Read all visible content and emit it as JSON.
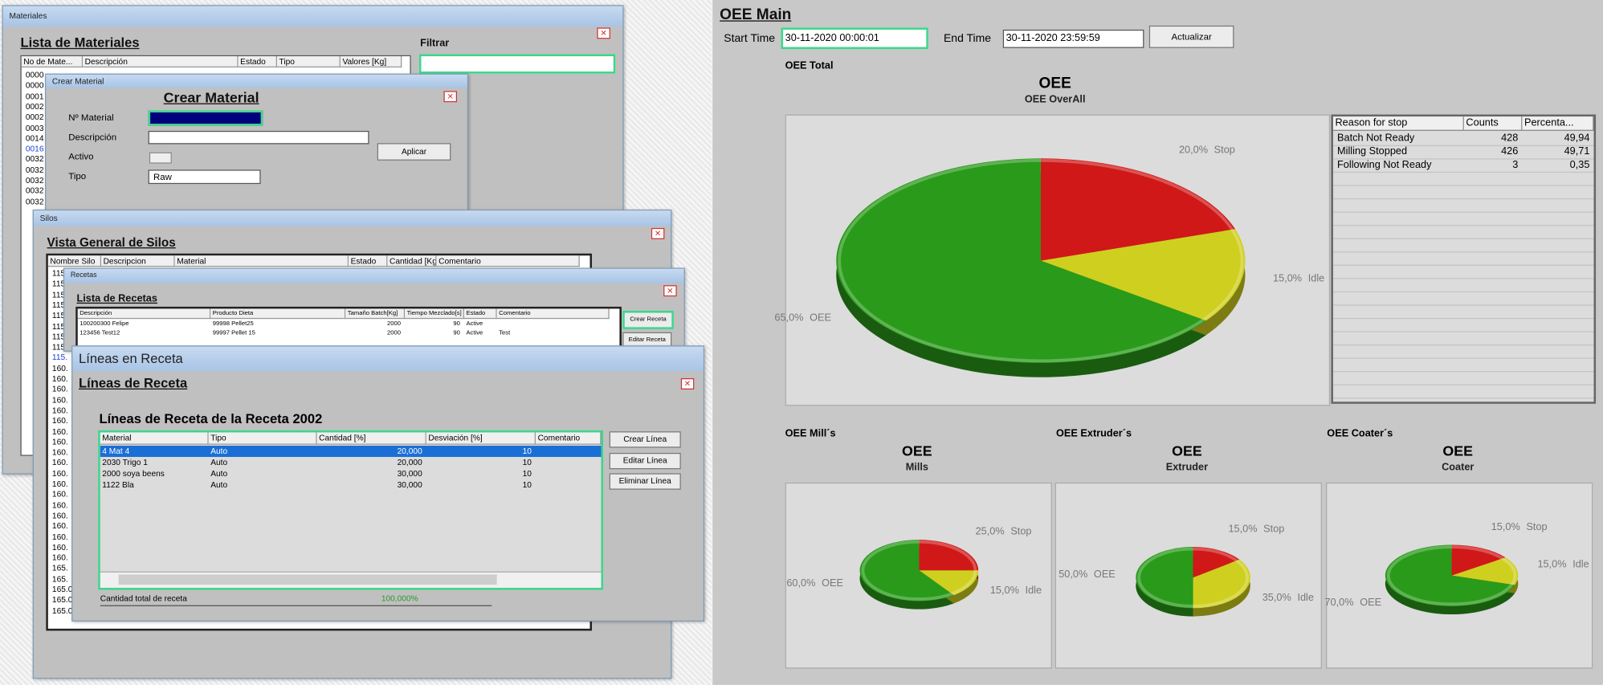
{
  "materiales": {
    "window_title": "Materiales",
    "heading": "Lista de Materiales",
    "columns": [
      "No de Mate...",
      "Descripción",
      "Estado",
      "Tipo",
      "Valores [Kg]"
    ],
    "codes": [
      "0000",
      "0000",
      "0001",
      "0002",
      "0002",
      "0003",
      "0014",
      "0016",
      "0032",
      "0032",
      "0032",
      "0032",
      "0032"
    ],
    "filter_label": "Filtrar"
  },
  "crear_material": {
    "window_title": "Crear Material",
    "heading": "Crear Material",
    "fields": [
      "Nº Material",
      "Descripción",
      "Activo",
      "Tipo"
    ],
    "tipo_value": "Raw",
    "button": "Aplicar"
  },
  "silos": {
    "window_title": "Silos",
    "heading": "Vista General de Silos",
    "columns": [
      "Nombre Silo",
      "Descripcion",
      "Material",
      "Estado",
      "Cantidad [Kg]",
      "Comentario"
    ],
    "codes": [
      "115.",
      "115.",
      "115.",
      "115.",
      "115.",
      "115.",
      "115.",
      "115.",
      "115.",
      "160.",
      "160.",
      "160.",
      "160.",
      "160.",
      "160.",
      "160.",
      "160.",
      "160.",
      "160.",
      "160.",
      "160.",
      "160.",
      "160.",
      "160.",
      "160.",
      "160.",
      "160.",
      "160.",
      "165.",
      "165.",
      "165.0",
      "165.0",
      "165.0"
    ]
  },
  "recetas": {
    "window_title": "Recetas",
    "heading": "Lista de Recetas",
    "columns": [
      "Descripción",
      "Producto Dieta",
      "Tamaño Batch[Kg]",
      "Tiempo Mezclado[s]",
      "Estado",
      "Comentario"
    ],
    "rows": [
      [
        "100200300 Felipe",
        "99998 Pellet25",
        "2000",
        "90",
        "Active"
      ],
      [
        "123456 Test12",
        "99997 Pellet 15",
        "2000",
        "90",
        "Active",
        "Test"
      ]
    ],
    "buttons": [
      "Crear Receta",
      "Editar Receta"
    ]
  },
  "lineas": {
    "window_title": "Líneas en Receta",
    "heading": "Líneas de Receta",
    "subheading": "Líneas de Receta de la Receta  2002",
    "columns": [
      "Material",
      "Tipo",
      "Cantidad [%]",
      "Desviación [%]",
      "Comentario"
    ],
    "rows": [
      [
        "4 Mat 4",
        "Auto",
        "20,000",
        "10"
      ],
      [
        "2030 Trigo 1",
        "Auto",
        "20,000",
        "10"
      ],
      [
        "2000 soya beens",
        "Auto",
        "30,000",
        "10"
      ],
      [
        "1122 Bla",
        "Auto",
        "30,000",
        "10"
      ]
    ],
    "buttons": [
      "Crear Línea",
      "Editar Línea",
      "Eliminar Línea"
    ],
    "total_label": "Cantidad total de receta",
    "total_value": "100,000%"
  },
  "oee": {
    "title": "OEE Main",
    "start_label": "Start Time",
    "start_value": "30-11-2020 00:00:01",
    "end_label": "End Time",
    "end_value": "30-11-2020 23:59:59",
    "button": "Actualizar",
    "total_label": "OEE Total",
    "section_labels": [
      "OEE Mill´s",
      "OEE Extruder´s",
      "OEE Coater´s"
    ],
    "stops_table": {
      "columns": [
        "Reason for stop",
        "Counts",
        "Percenta..."
      ],
      "rows": [
        [
          "Batch Not Ready",
          "428",
          "49,94"
        ],
        [
          "Milling Stopped",
          "426",
          "49,71"
        ],
        [
          "Following Not Ready",
          "3",
          "0,35"
        ]
      ]
    }
  },
  "chart_data": [
    {
      "type": "pie",
      "title": "OEE",
      "subtitle": "OEE OverAll",
      "categories": [
        "OEE",
        "Stop",
        "Idle"
      ],
      "values": [
        65,
        20,
        15
      ],
      "value_labels": [
        "65,0%",
        "20,0%",
        "15,0%"
      ],
      "colors": [
        "#2a9a1a",
        "#d01818",
        "#cfcf20"
      ]
    },
    {
      "type": "pie",
      "title": "OEE",
      "subtitle": "Mills",
      "categories": [
        "OEE",
        "Stop",
        "Idle"
      ],
      "values": [
        60,
        25,
        15
      ],
      "value_labels": [
        "60,0%",
        "25,0%",
        "15,0%"
      ],
      "colors": [
        "#2a9a1a",
        "#d01818",
        "#cfcf20"
      ]
    },
    {
      "type": "pie",
      "title": "OEE",
      "subtitle": "Extruder",
      "categories": [
        "OEE",
        "Stop",
        "Idle"
      ],
      "values": [
        50,
        15,
        35
      ],
      "value_labels": [
        "50,0%",
        "15,0%",
        "35,0%"
      ],
      "colors": [
        "#2a9a1a",
        "#d01818",
        "#cfcf20"
      ]
    },
    {
      "type": "pie",
      "title": "OEE",
      "subtitle": "Coater",
      "categories": [
        "OEE",
        "Stop",
        "Idle"
      ],
      "values": [
        70,
        15,
        15
      ],
      "value_labels": [
        "70,0%",
        "15,0%",
        "15,0%"
      ],
      "colors": [
        "#2a9a1a",
        "#d01818",
        "#cfcf20"
      ]
    }
  ]
}
